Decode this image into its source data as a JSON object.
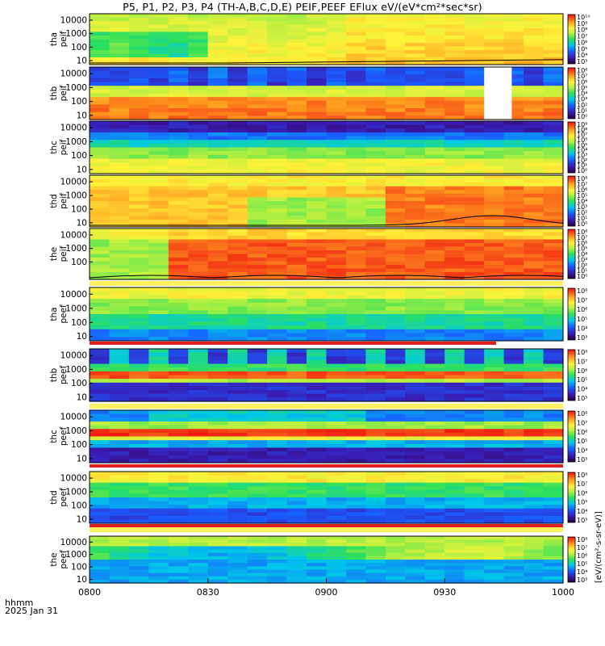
{
  "title": "P5, P1, P2, P3, P4 (TH-A,B,C,D,E) PEIF,PEEF EFlux eV/(eV*cm²*sec*sr)",
  "time_axis": {
    "label_line1": "hhmm",
    "label_line2": "2025 Jan 31",
    "ticks": [
      "0800",
      "0830",
      "0900",
      "0930",
      "1000"
    ]
  },
  "colorbar_unit_label": "[eV/(cm²-s-sr-eV)]",
  "colors": {
    "white": "#ffffff",
    "black": "#000000",
    "red_bar": "#e0201e"
  },
  "chart_data": [
    {
      "type": "heatmap",
      "panel": "tha_peif",
      "ylabel": [
        "tha",
        "peif"
      ],
      "yticks": [
        "10000",
        "1000",
        "100",
        "10"
      ],
      "ylog": true,
      "ylim": [
        5,
        30000
      ],
      "x_range": [
        "0800",
        "1000"
      ],
      "cb_ticks": [
        "10¹⁰",
        "10⁹",
        "10⁸",
        "10⁷",
        "10⁶",
        "10⁵",
        "10⁴",
        "10³"
      ],
      "overlay_line": true
    },
    {
      "type": "heatmap",
      "panel": "thb_peif",
      "ylabel": [
        "thb",
        "peif"
      ],
      "yticks": [
        "10000",
        "1000",
        "100",
        "10"
      ],
      "ylog": true,
      "ylim": [
        5,
        30000
      ],
      "x_range": [
        "0800",
        "1000"
      ],
      "cb_ticks": [
        "10⁸",
        "10⁷",
        "10⁶",
        "10⁵",
        "10⁴",
        "10³",
        "10²",
        "10¹",
        "10⁰"
      ],
      "data_gap": [
        "0940",
        "0947"
      ]
    },
    {
      "type": "heatmap",
      "panel": "thc_peif",
      "ylabel": [
        "thc",
        "peif"
      ],
      "yticks": [
        "10000",
        "1000",
        "100",
        "10"
      ],
      "ylog": true,
      "ylim": [
        5,
        30000
      ],
      "x_range": [
        "0800",
        "1000"
      ],
      "cb_ticks": [
        "10⁹",
        "10⁸",
        "10⁷",
        "10⁶",
        "10⁵",
        "10⁴",
        "10³",
        "10²",
        "10¹",
        "10⁰"
      ]
    },
    {
      "type": "heatmap",
      "panel": "thd_peif",
      "ylabel": [
        "thd",
        "peif"
      ],
      "yticks": [
        "10000",
        "1000",
        "100",
        "10"
      ],
      "ylog": true,
      "ylim": [
        5,
        30000
      ],
      "x_range": [
        "0800",
        "1000"
      ],
      "cb_ticks": [
        "10⁸",
        "10⁷",
        "10⁶",
        "10⁵",
        "10⁴",
        "10³",
        "10²",
        "10¹",
        "10⁰"
      ],
      "overlay_line": true
    },
    {
      "type": "heatmap",
      "panel": "the_peif",
      "ylabel": [
        "the",
        "peif"
      ],
      "yticks": [
        "10000",
        "1000",
        "100"
      ],
      "ylog": true,
      "ylim": [
        5,
        30000
      ],
      "x_range": [
        "0800",
        "1000"
      ],
      "cb_ticks": [
        "10⁸",
        "10⁷",
        "10⁶",
        "10⁵",
        "10⁴",
        "10³",
        "10²",
        "10¹",
        "10⁰"
      ],
      "overlay_line": true
    },
    {
      "type": "heatmap",
      "panel": "tha_peef",
      "ylabel": [
        "tha",
        "peef"
      ],
      "yticks": [
        "10000",
        "1000",
        "100",
        "10"
      ],
      "ylog": true,
      "ylim": [
        5,
        30000
      ],
      "x_range": [
        "0800",
        "1000"
      ],
      "cb_ticks": [
        "10⁸",
        "10⁷",
        "10⁶",
        "10⁵",
        "10⁴",
        "10³"
      ]
    },
    {
      "type": "heatmap",
      "panel": "thb_peef",
      "ylabel": [
        "thb",
        "peef"
      ],
      "yticks": [
        "10000",
        "1000",
        "100",
        "10"
      ],
      "ylog": true,
      "ylim": [
        5,
        30000
      ],
      "x_range": [
        "0800",
        "1000"
      ],
      "cb_ticks": [
        "10⁸",
        "10⁷",
        "10⁶",
        "10⁵",
        "10⁴",
        "10³"
      ]
    },
    {
      "type": "heatmap",
      "panel": "thc_peef",
      "ylabel": [
        "thc",
        "peef"
      ],
      "yticks": [
        "10000",
        "1000",
        "100",
        "10"
      ],
      "ylog": true,
      "ylim": [
        5,
        30000
      ],
      "x_range": [
        "0800",
        "1000"
      ],
      "cb_ticks": [
        "10⁸",
        "10⁷",
        "10⁶",
        "10⁵",
        "10⁴",
        "10³"
      ]
    },
    {
      "type": "heatmap",
      "panel": "thd_peef",
      "ylabel": [
        "thd",
        "peef"
      ],
      "yticks": [
        "10000",
        "1000",
        "100",
        "10"
      ],
      "ylog": true,
      "ylim": [
        5,
        30000
      ],
      "x_range": [
        "0800",
        "1000"
      ],
      "cb_ticks": [
        "10⁸",
        "10⁷",
        "10⁶",
        "10⁵",
        "10⁴",
        "10³"
      ]
    },
    {
      "type": "heatmap",
      "panel": "the_peef",
      "ylabel": [
        "the",
        "peef"
      ],
      "yticks": [
        "10000",
        "1000",
        "100",
        "10"
      ],
      "ylog": true,
      "ylim": [
        5,
        30000
      ],
      "x_range": [
        "0800",
        "1000"
      ],
      "cb_ticks": [
        "10⁸",
        "10⁷",
        "10⁶",
        "10⁵",
        "10⁴",
        "10³"
      ]
    }
  ]
}
